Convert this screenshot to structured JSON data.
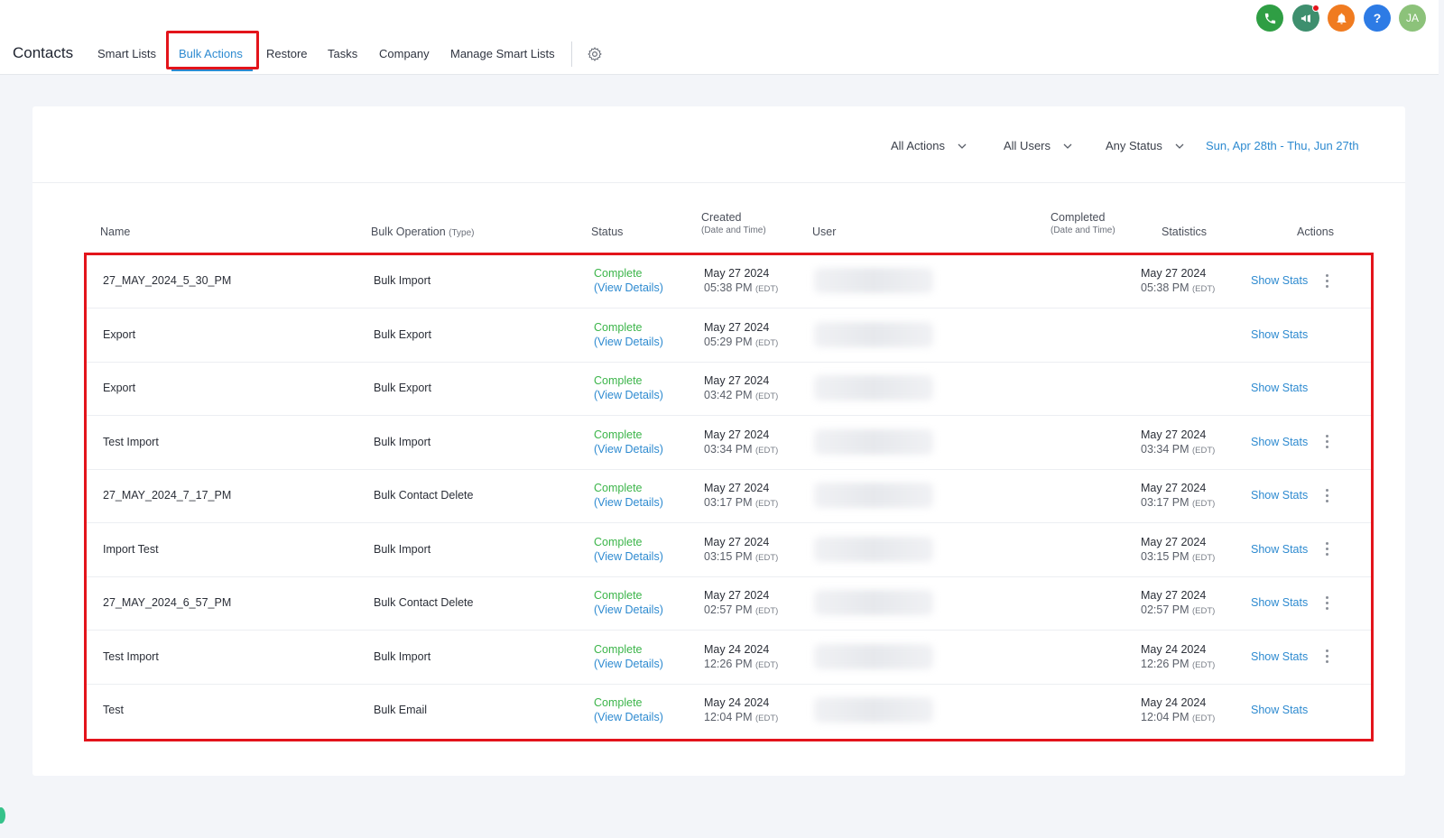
{
  "app": {
    "title": "Contacts"
  },
  "nav": {
    "tabs": [
      {
        "label": "Smart Lists"
      },
      {
        "label": "Bulk Actions",
        "active": true
      },
      {
        "label": "Restore"
      },
      {
        "label": "Tasks"
      },
      {
        "label": "Company"
      },
      {
        "label": "Manage Smart Lists"
      }
    ]
  },
  "top_icons": [
    {
      "icon": "phone-icon",
      "color": "#2f9e44"
    },
    {
      "icon": "megaphone-icon",
      "color": "#3e8f6e"
    },
    {
      "icon": "bell-icon",
      "color": "#f07b20"
    },
    {
      "icon": "help-icon",
      "color": "#2d7be5",
      "glyph": "?"
    },
    {
      "icon": "avatar",
      "color": "#8cc27a",
      "initials": "JA"
    }
  ],
  "filters": {
    "actions": "All Actions",
    "users": "All Users",
    "status": "Any Status",
    "date_range": "Sun, Apr 28th - Thu, Jun 27th"
  },
  "table": {
    "headers": {
      "name": "Name",
      "operation": "Bulk Operation",
      "operation_sub": "(Type)",
      "status": "Status",
      "created": "Created",
      "created_sub": "(Date and Time)",
      "user": "User",
      "completed": "Completed",
      "completed_sub": "(Date and Time)",
      "statistics": "Statistics",
      "actions": "Actions"
    },
    "rows": [
      {
        "name": "27_MAY_2024_5_30_PM",
        "operation": "Bulk Import",
        "status": "Complete",
        "details": "(View Details)",
        "created_date": "May 27 2024",
        "created_time": "05:38 PM",
        "tz": "(EDT)",
        "completed_date": "May 27 2024",
        "completed_time": "05:38 PM",
        "stats": "Show Stats",
        "has_menu": true
      },
      {
        "name": "Export",
        "operation": "Bulk Export",
        "status": "Complete",
        "details": "(View Details)",
        "created_date": "May 27 2024",
        "created_time": "05:29 PM",
        "tz": "(EDT)",
        "completed_date": "",
        "completed_time": "",
        "stats": "Show Stats",
        "has_menu": false
      },
      {
        "name": "Export",
        "operation": "Bulk Export",
        "status": "Complete",
        "details": "(View Details)",
        "created_date": "May 27 2024",
        "created_time": "03:42 PM",
        "tz": "(EDT)",
        "completed_date": "",
        "completed_time": "",
        "stats": "Show Stats",
        "has_menu": false
      },
      {
        "name": "Test Import",
        "operation": "Bulk Import",
        "status": "Complete",
        "details": "(View Details)",
        "created_date": "May 27 2024",
        "created_time": "03:34 PM",
        "tz": "(EDT)",
        "completed_date": "May 27 2024",
        "completed_time": "03:34 PM",
        "stats": "Show Stats",
        "has_menu": true
      },
      {
        "name": "27_MAY_2024_7_17_PM",
        "operation": "Bulk Contact Delete",
        "status": "Complete",
        "details": "(View Details)",
        "created_date": "May 27 2024",
        "created_time": "03:17 PM",
        "tz": "(EDT)",
        "completed_date": "May 27 2024",
        "completed_time": "03:17 PM",
        "stats": "Show Stats",
        "has_menu": true
      },
      {
        "name": "Import Test",
        "operation": "Bulk Import",
        "status": "Complete",
        "details": "(View Details)",
        "created_date": "May 27 2024",
        "created_time": "03:15 PM",
        "tz": "(EDT)",
        "completed_date": "May 27 2024",
        "completed_time": "03:15 PM",
        "stats": "Show Stats",
        "has_menu": true
      },
      {
        "name": "27_MAY_2024_6_57_PM",
        "operation": "Bulk Contact Delete",
        "status": "Complete",
        "details": "(View Details)",
        "created_date": "May 27 2024",
        "created_time": "02:57 PM",
        "tz": "(EDT)",
        "completed_date": "May 27 2024",
        "completed_time": "02:57 PM",
        "stats": "Show Stats",
        "has_menu": true
      },
      {
        "name": "Test Import",
        "operation": "Bulk Import",
        "status": "Complete",
        "details": "(View Details)",
        "created_date": "May 24 2024",
        "created_time": "12:26 PM",
        "tz": "(EDT)",
        "completed_date": "May 24 2024",
        "completed_time": "12:26 PM",
        "stats": "Show Stats",
        "has_menu": true
      },
      {
        "name": "Test",
        "operation": "Bulk Email",
        "status": "Complete",
        "details": "(View Details)",
        "created_date": "May 24 2024",
        "created_time": "12:04 PM",
        "tz": "(EDT)",
        "completed_date": "May 24 2024",
        "completed_time": "12:04 PM",
        "stats": "Show Stats",
        "has_menu": false
      }
    ]
  }
}
